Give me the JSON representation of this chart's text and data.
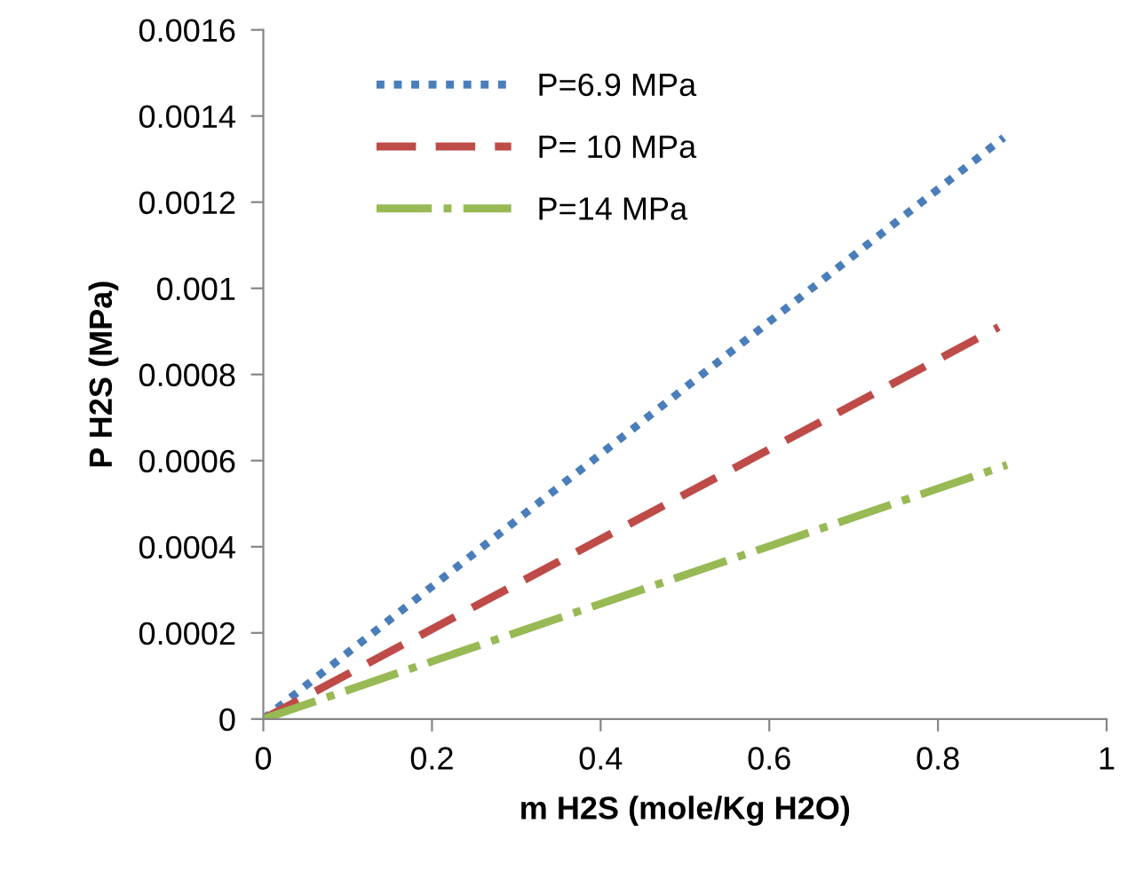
{
  "chart_data": {
    "type": "line",
    "xlabel": "m H2S (mole/Kg H2O)",
    "ylabel": "P H2S (MPa)",
    "xlim": [
      0,
      1
    ],
    "xticks": [
      0,
      0.2,
      0.4,
      0.6,
      0.8,
      1
    ],
    "ylim": [
      0,
      0.0016
    ],
    "yticks": [
      0,
      0.0002,
      0.0004,
      0.0006,
      0.0008,
      0.001,
      0.0012,
      0.0014,
      0.0016
    ],
    "grid": false,
    "legend": "top left",
    "marker": "none",
    "series": [
      {
        "name": "P=6.9 MPa",
        "color": "#4a7ebb",
        "line_style": "dotted",
        "x": [
          0,
          0.878
        ],
        "values": [
          0,
          0.00135
        ]
      },
      {
        "name": "P= 10 MPa",
        "color": "#be4b48",
        "line_style": "dashed",
        "x": [
          0,
          0.872
        ],
        "values": [
          0,
          0.00091
        ]
      },
      {
        "name": "P=14 MPa",
        "color": "#98b954",
        "line_style": "dashdot",
        "x": [
          0,
          0.882
        ],
        "values": [
          0,
          0.00059
        ]
      }
    ]
  }
}
